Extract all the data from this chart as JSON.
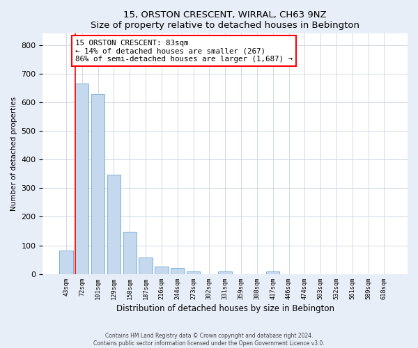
{
  "title": "15, ORSTON CRESCENT, WIRRAL, CH63 9NZ",
  "subtitle": "Size of property relative to detached houses in Bebington",
  "xlabel": "Distribution of detached houses by size in Bebington",
  "ylabel": "Number of detached properties",
  "bar_labels": [
    "43sqm",
    "72sqm",
    "101sqm",
    "129sqm",
    "158sqm",
    "187sqm",
    "216sqm",
    "244sqm",
    "273sqm",
    "302sqm",
    "331sqm",
    "359sqm",
    "388sqm",
    "417sqm",
    "446sqm",
    "474sqm",
    "503sqm",
    "532sqm",
    "561sqm",
    "589sqm",
    "618sqm"
  ],
  "bar_values": [
    83,
    665,
    630,
    348,
    148,
    57,
    27,
    20,
    9,
    0,
    8,
    0,
    0,
    8,
    0,
    0,
    0,
    0,
    0,
    0,
    0
  ],
  "bar_color": "#c5d9ee",
  "bar_edge_color": "#7aafd4",
  "ylim": [
    0,
    840
  ],
  "annotation_text": "15 ORSTON CRESCENT: 83sqm\n← 14% of detached houses are smaller (267)\n86% of semi-detached houses are larger (1,687) →",
  "footer_line1": "Contains HM Land Registry data © Crown copyright and database right 2024.",
  "footer_line2": "Contains public sector information licensed under the Open Government Licence v3.0.",
  "background_color": "#e8eef8",
  "plot_bg_color": "#ffffff",
  "grid_color": "#d0d8e8"
}
